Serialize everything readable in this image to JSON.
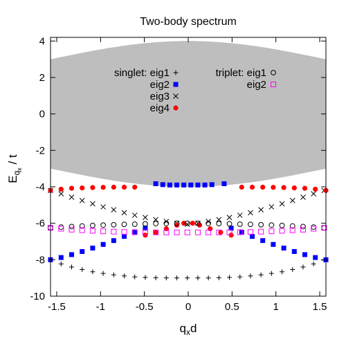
{
  "chart_data": {
    "type": "scatter",
    "title": "Two-body spectrum",
    "xlabel": "q",
    "xlabel_sub": "x",
    "xlabel_tail": "d",
    "ylabel": "E",
    "ylabel_sub": "q",
    "ylabel_subsub": "x",
    "ylabel_tail": " / t",
    "xlim": [
      -1.5708,
      1.5708
    ],
    "ylim": [
      -10,
      4.2
    ],
    "xticks": [
      -1.5,
      -1,
      -0.5,
      0,
      0.5,
      1,
      1.5
    ],
    "xtick_labels": [
      "-1.5",
      "-1",
      "-0.5",
      "0",
      "0.5",
      "1",
      "1.5"
    ],
    "yticks": [
      -10,
      -8,
      -6,
      -4,
      -2,
      0,
      2,
      4
    ],
    "ytick_labels": [
      "-10",
      "-8",
      "-6",
      "-4",
      "-2",
      "0",
      "2",
      "4"
    ],
    "grid": false,
    "legend_placement": "top",
    "legend_groups": [
      "singlet:",
      "triplet:"
    ],
    "continuum": {
      "color": "#bebebe",
      "upper_max": 4.0,
      "upper_edge": 3.0,
      "lower_min": -4.0,
      "lower_edge": -3.0
    },
    "series": [
      {
        "name": "eig1",
        "group": "singlet",
        "marker": "plus",
        "color": "#000000",
        "x": [
          -1.571,
          -1.45,
          -1.33,
          -1.21,
          -1.09,
          -0.97,
          -0.85,
          -0.73,
          -0.61,
          -0.49,
          -0.37,
          -0.25,
          -0.13,
          -0.01,
          0.11,
          0.23,
          0.35,
          0.47,
          0.59,
          0.71,
          0.83,
          0.95,
          1.07,
          1.19,
          1.31,
          1.43,
          1.55
        ],
        "y": [
          -8.0,
          -8.23,
          -8.4,
          -8.54,
          -8.66,
          -8.75,
          -8.83,
          -8.89,
          -8.94,
          -8.97,
          -8.99,
          -9.0,
          -9.0,
          -9.0,
          -9.0,
          -9.0,
          -8.99,
          -8.97,
          -8.94,
          -8.89,
          -8.83,
          -8.75,
          -8.66,
          -8.54,
          -8.4,
          -8.23,
          -8.02
        ]
      },
      {
        "name": "eig2",
        "group": "singlet",
        "marker": "filled-square",
        "color": "#0000ff",
        "x": [
          -1.571,
          -1.45,
          -1.33,
          -1.21,
          -1.09,
          -0.97,
          -0.85,
          -0.73,
          -0.61,
          -0.49,
          -0.37,
          -0.29,
          -0.21,
          -0.13,
          -0.05,
          0.03,
          0.11,
          0.19,
          0.27,
          0.41,
          0.49,
          0.61,
          0.73,
          0.85,
          0.97,
          1.09,
          1.21,
          1.33,
          1.45,
          1.571
        ],
        "y": [
          -8.0,
          -7.88,
          -7.72,
          -7.55,
          -7.36,
          -7.16,
          -6.95,
          -6.72,
          -6.49,
          -6.27,
          -3.83,
          -3.88,
          -3.9,
          -3.9,
          -3.9,
          -3.9,
          -3.9,
          -3.9,
          -3.88,
          -3.83,
          -6.27,
          -6.49,
          -6.72,
          -6.95,
          -7.16,
          -7.36,
          -7.55,
          -7.72,
          -7.88,
          -8.0
        ]
      },
      {
        "name": "eig3",
        "group": "singlet",
        "marker": "cross",
        "color": "#000000",
        "x": [
          -1.571,
          -1.45,
          -1.33,
          -1.21,
          -1.09,
          -0.97,
          -0.85,
          -0.73,
          -0.61,
          -0.49,
          -0.37,
          -0.25,
          -0.13,
          -0.01,
          0.11,
          0.23,
          0.35,
          0.47,
          0.59,
          0.71,
          0.83,
          0.95,
          1.07,
          1.19,
          1.31,
          1.43,
          1.55
        ],
        "y": [
          -4.2,
          -4.38,
          -4.57,
          -4.75,
          -4.93,
          -5.1,
          -5.26,
          -5.42,
          -5.56,
          -5.68,
          -5.8,
          -5.9,
          -6.0,
          -6.05,
          -6.0,
          -5.9,
          -5.8,
          -5.68,
          -5.56,
          -5.42,
          -5.26,
          -5.1,
          -4.93,
          -4.75,
          -4.57,
          -4.38,
          -4.2
        ]
      },
      {
        "name": "eig4",
        "group": "singlet",
        "marker": "filled-circle",
        "color": "#ff0000",
        "x": [
          -1.571,
          -1.45,
          -1.33,
          -1.21,
          -1.09,
          -0.97,
          -0.85,
          -0.73,
          -0.61,
          -0.49,
          -0.37,
          -0.25,
          -0.13,
          -0.05,
          0.05,
          0.13,
          0.25,
          0.37,
          0.49,
          0.61,
          0.73,
          0.85,
          0.97,
          1.09,
          1.21,
          1.33,
          1.45,
          1.571
        ],
        "y": [
          -4.2,
          -4.13,
          -4.08,
          -4.06,
          -4.04,
          -4.03,
          -4.02,
          -4.02,
          -4.02,
          -6.65,
          -6.5,
          -6.3,
          -6.1,
          -6.0,
          -6.0,
          -6.1,
          -6.3,
          -6.5,
          -6.65,
          -4.02,
          -4.02,
          -4.02,
          -4.03,
          -4.04,
          -4.06,
          -4.08,
          -4.13,
          -4.2
        ]
      },
      {
        "name": "eig1",
        "group": "triplet",
        "marker": "open-circle",
        "color": "#000000",
        "x": [
          -1.571,
          -1.45,
          -1.33,
          -1.21,
          -1.09,
          -0.97,
          -0.85,
          -0.73,
          -0.61,
          -0.49,
          -0.37,
          -0.25,
          -0.13,
          -0.01,
          0.11,
          0.23,
          0.35,
          0.47,
          0.59,
          0.71,
          0.83,
          0.95,
          1.07,
          1.19,
          1.31,
          1.43,
          1.55
        ],
        "y": [
          -6.25,
          -6.21,
          -6.18,
          -6.15,
          -6.12,
          -6.1,
          -6.08,
          -6.06,
          -6.05,
          -6.03,
          -6.02,
          -6.01,
          -6.0,
          -6.0,
          -6.0,
          -6.01,
          -6.02,
          -6.03,
          -6.05,
          -6.06,
          -6.08,
          -6.1,
          -6.12,
          -6.15,
          -6.18,
          -6.21,
          -6.25
        ]
      },
      {
        "name": "eig2",
        "group": "triplet",
        "marker": "open-square",
        "color": "#ff00ff",
        "x": [
          -1.571,
          -1.45,
          -1.33,
          -1.21,
          -1.09,
          -0.97,
          -0.85,
          -0.73,
          -0.61,
          -0.49,
          -0.37,
          -0.25,
          -0.13,
          -0.01,
          0.11,
          0.23,
          0.35,
          0.47,
          0.59,
          0.71,
          0.83,
          0.95,
          1.07,
          1.19,
          1.31,
          1.43,
          1.55
        ],
        "y": [
          -6.25,
          -6.3,
          -6.35,
          -6.38,
          -6.41,
          -6.44,
          -6.46,
          -6.48,
          -6.49,
          -6.5,
          -6.5,
          -6.5,
          -6.5,
          -6.5,
          -6.5,
          -6.5,
          -6.5,
          -6.5,
          -6.49,
          -6.48,
          -6.46,
          -6.44,
          -6.41,
          -6.38,
          -6.35,
          -6.3,
          -6.25
        ]
      }
    ]
  }
}
